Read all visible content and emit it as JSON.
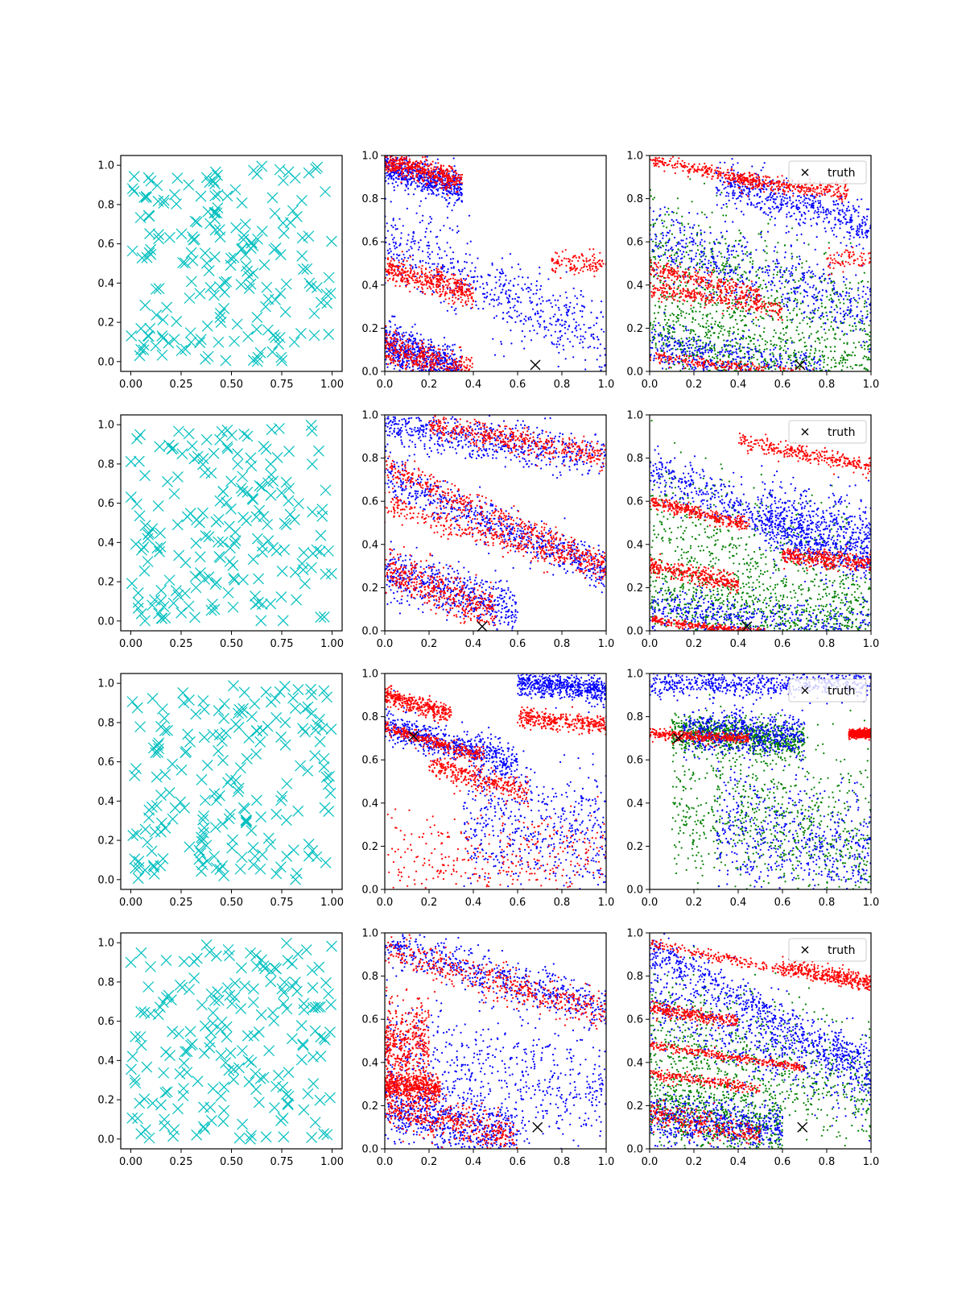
{
  "colors": {
    "samples": "#00bfbf",
    "series_blue": "#0000ff",
    "series_red": "#ff0000",
    "series_green": "#008000",
    "truth": "#000000",
    "axes": "#000000"
  },
  "legend_label": "truth",
  "chart_data": [
    {
      "row": 0,
      "col": 0,
      "type": "scatter",
      "marker": "x",
      "xlim": [
        -0.05,
        1.05
      ],
      "ylim": [
        -0.05,
        1.05
      ],
      "xticks": [
        "0.00",
        "0.25",
        "0.50",
        "0.75",
        "1.00"
      ],
      "yticks": [
        "0.0",
        "0.2",
        "0.4",
        "0.6",
        "0.8",
        "1.0"
      ],
      "series": [
        {
          "color": "samples",
          "count": 200,
          "seed": 11,
          "pattern": "uniform"
        }
      ]
    },
    {
      "row": 0,
      "col": 1,
      "type": "scatter",
      "xlim": [
        0,
        1
      ],
      "ylim": [
        0,
        1
      ],
      "xticks": [
        "0.0",
        "0.2",
        "0.4",
        "0.6",
        "0.8",
        "1.0"
      ],
      "yticks": [
        "0.0",
        "0.2",
        "0.4",
        "0.6",
        "0.8",
        "1.0"
      ],
      "truth": {
        "x": 0.68,
        "y": 0.03
      },
      "series": [
        {
          "color": "series_blue",
          "count": 1800,
          "seed": 21,
          "pattern": "bands",
          "bands": [
            [
              0.0,
              0.95,
              -0.3,
              0.35,
              0.04
            ],
            [
              0.0,
              0.13,
              -0.35,
              0.35,
              0.05
            ],
            [
              0.0,
              0.62,
              -0.5,
              1.0,
              0.1
            ]
          ]
        },
        {
          "color": "series_red",
          "count": 1800,
          "seed": 22,
          "pattern": "bands",
          "bands": [
            [
              0.0,
              0.97,
              -0.25,
              0.35,
              0.025
            ],
            [
              0.0,
              0.48,
              -0.3,
              0.4,
              0.03
            ],
            [
              0.0,
              0.12,
              -0.35,
              0.4,
              0.04
            ],
            [
              0.75,
              0.5,
              0.0,
              1.0,
              0.03
            ]
          ]
        }
      ]
    },
    {
      "row": 0,
      "col": 2,
      "type": "scatter",
      "xlim": [
        0,
        1
      ],
      "ylim": [
        0,
        1
      ],
      "xticks": [
        "0.0",
        "0.2",
        "0.4",
        "0.6",
        "0.8",
        "1.0"
      ],
      "yticks": [
        "0.0",
        "0.2",
        "0.4",
        "0.6",
        "0.8",
        "1.0"
      ],
      "truth": {
        "x": 0.68,
        "y": 0.03
      },
      "legend": true,
      "series": [
        {
          "color": "series_green",
          "count": 1500,
          "seed": 31,
          "pattern": "bands",
          "bands": [
            [
              0.0,
              0.55,
              -0.4,
              1.0,
              0.15
            ],
            [
              0.0,
              0.2,
              -0.3,
              1.0,
              0.1
            ]
          ]
        },
        {
          "color": "series_blue",
          "count": 1700,
          "seed": 32,
          "pattern": "bands",
          "bands": [
            [
              0.3,
              0.88,
              -0.3,
              0.8,
              0.05
            ],
            [
              0.0,
              0.62,
              -0.35,
              1.0,
              0.08
            ],
            [
              0.0,
              0.12,
              -0.2,
              0.8,
              0.06
            ]
          ]
        },
        {
          "color": "series_red",
          "count": 1600,
          "seed": 33,
          "pattern": "bands",
          "bands": [
            [
              0.0,
              0.98,
              -0.2,
              0.5,
              0.015
            ],
            [
              0.0,
              0.07,
              -0.12,
              0.8,
              0.015
            ],
            [
              0.0,
              0.48,
              -0.25,
              0.5,
              0.02
            ],
            [
              0.4,
              0.88,
              -0.1,
              0.5,
              0.02
            ],
            [
              0.8,
              0.52,
              0.0,
              0.7,
              0.03
            ],
            [
              0.0,
              0.38,
              -0.15,
              0.6,
              0.02
            ]
          ]
        }
      ]
    },
    {
      "row": 1,
      "col": 0,
      "type": "scatter",
      "marker": "x",
      "xlim": [
        -0.05,
        1.05
      ],
      "ylim": [
        -0.05,
        1.05
      ],
      "xticks": [
        "0.00",
        "0.25",
        "0.50",
        "0.75",
        "1.00"
      ],
      "yticks": [
        "0.0",
        "0.2",
        "0.4",
        "0.6",
        "0.8",
        "1.0"
      ],
      "series": [
        {
          "color": "samples",
          "count": 200,
          "seed": 12,
          "pattern": "uniform"
        }
      ]
    },
    {
      "row": 1,
      "col": 1,
      "type": "scatter",
      "xlim": [
        0,
        1
      ],
      "ylim": [
        0,
        1
      ],
      "xticks": [
        "0.0",
        "0.2",
        "0.4",
        "0.6",
        "0.8",
        "1.0"
      ],
      "yticks": [
        "0.0",
        "0.2",
        "0.4",
        "0.6",
        "0.8",
        "1.0"
      ],
      "truth": {
        "x": 0.44,
        "y": 0.02
      },
      "series": [
        {
          "color": "series_blue",
          "count": 1800,
          "seed": 41,
          "pattern": "bands",
          "bands": [
            [
              0.0,
              0.72,
              -0.45,
              1.0,
              0.05
            ],
            [
              0.0,
              0.27,
              -0.3,
              0.6,
              0.06
            ],
            [
              0.0,
              0.95,
              -0.15,
              1.0,
              0.05
            ]
          ]
        },
        {
          "color": "series_red",
          "count": 1700,
          "seed": 42,
          "pattern": "bands",
          "bands": [
            [
              0.0,
              0.76,
              -0.45,
              1.0,
              0.03
            ],
            [
              0.0,
              0.28,
              -0.35,
              0.5,
              0.05
            ],
            [
              0.2,
              0.95,
              -0.18,
              0.8,
              0.03
            ],
            [
              0.0,
              0.58,
              -0.3,
              1.0,
              0.03
            ]
          ]
        }
      ]
    },
    {
      "row": 1,
      "col": 2,
      "type": "scatter",
      "xlim": [
        0,
        1
      ],
      "ylim": [
        0,
        1
      ],
      "xticks": [
        "0.0",
        "0.2",
        "0.4",
        "0.6",
        "0.8",
        "1.0"
      ],
      "yticks": [
        "0.0",
        "0.2",
        "0.4",
        "0.6",
        "0.8",
        "1.0"
      ],
      "truth": {
        "x": 0.44,
        "y": 0.02
      },
      "legend": true,
      "series": [
        {
          "color": "series_green",
          "count": 1400,
          "seed": 51,
          "pattern": "bands",
          "bands": [
            [
              0.0,
              0.5,
              -0.4,
              1.0,
              0.18
            ],
            [
              0.0,
              0.15,
              -0.2,
              1.0,
              0.1
            ]
          ]
        },
        {
          "color": "series_blue",
          "count": 1700,
          "seed": 52,
          "pattern": "bands",
          "bands": [
            [
              0.0,
              0.75,
              -0.45,
              1.0,
              0.05
            ],
            [
              0.0,
              0.1,
              -0.1,
              1.0,
              0.06
            ],
            [
              0.5,
              0.55,
              -0.3,
              0.5,
              0.1
            ]
          ]
        },
        {
          "color": "series_red",
          "count": 1600,
          "seed": 53,
          "pattern": "bands",
          "bands": [
            [
              0.0,
              0.05,
              -0.12,
              0.6,
              0.01
            ],
            [
              0.0,
              0.6,
              -0.25,
              0.45,
              0.015
            ],
            [
              0.0,
              0.3,
              -0.2,
              0.4,
              0.02
            ],
            [
              0.4,
              0.88,
              -0.2,
              0.6,
              0.02
            ],
            [
              0.6,
              0.35,
              -0.1,
              0.4,
              0.02
            ]
          ]
        }
      ]
    },
    {
      "row": 2,
      "col": 0,
      "type": "scatter",
      "marker": "x",
      "xlim": [
        -0.05,
        1.05
      ],
      "ylim": [
        -0.05,
        1.05
      ],
      "xticks": [
        "0.00",
        "0.25",
        "0.50",
        "0.75",
        "1.00"
      ],
      "yticks": [
        "0.0",
        "0.2",
        "0.4",
        "0.6",
        "0.8",
        "1.0"
      ],
      "series": [
        {
          "color": "samples",
          "count": 200,
          "seed": 13,
          "pattern": "uniform"
        }
      ]
    },
    {
      "row": 2,
      "col": 1,
      "type": "scatter",
      "xlim": [
        0,
        1
      ],
      "ylim": [
        0,
        1
      ],
      "xticks": [
        "0.0",
        "0.2",
        "0.4",
        "0.6",
        "0.8",
        "1.0"
      ],
      "yticks": [
        "0.0",
        "0.2",
        "0.4",
        "0.6",
        "0.8",
        "1.0"
      ],
      "truth": {
        "x": 0.13,
        "y": 0.71
      },
      "series": [
        {
          "color": "series_blue",
          "count": 1700,
          "seed": 61,
          "pattern": "bands",
          "bands": [
            [
              0.0,
              0.76,
              -0.3,
              0.6,
              0.04
            ],
            [
              0.35,
              0.3,
              -0.1,
              0.65,
              0.15
            ],
            [
              0.6,
              0.96,
              -0.1,
              0.4,
              0.03
            ]
          ]
        },
        {
          "color": "series_red",
          "count": 1700,
          "seed": 62,
          "pattern": "bands",
          "bands": [
            [
              0.0,
              0.75,
              -0.3,
              0.45,
              0.015
            ],
            [
              0.2,
              0.58,
              -0.3,
              0.45,
              0.03
            ],
            [
              0.0,
              0.9,
              -0.3,
              0.3,
              0.02
            ],
            [
              0.6,
              0.8,
              -0.1,
              0.4,
              0.02
            ],
            [
              0.0,
              0.15,
              0.0,
              1.0,
              0.1
            ]
          ]
        }
      ]
    },
    {
      "row": 2,
      "col": 2,
      "type": "scatter",
      "xlim": [
        0,
        1
      ],
      "ylim": [
        0,
        1
      ],
      "xticks": [
        "0.0",
        "0.2",
        "0.4",
        "0.6",
        "0.8",
        "1.0"
      ],
      "yticks": [
        "0.0",
        "0.2",
        "0.4",
        "0.6",
        "0.8",
        "1.0"
      ],
      "truth": {
        "x": 0.13,
        "y": 0.7
      },
      "legend": true,
      "series": [
        {
          "color": "series_green",
          "count": 1600,
          "seed": 71,
          "pattern": "bands",
          "bands": [
            [
              0.1,
              0.74,
              -0.1,
              0.6,
              0.04
            ],
            [
              0.1,
              0.4,
              -0.2,
              0.9,
              0.18
            ]
          ]
        },
        {
          "color": "series_blue",
          "count": 1800,
          "seed": 72,
          "pattern": "bands",
          "bands": [
            [
              0.15,
              0.74,
              -0.05,
              0.55,
              0.05
            ],
            [
              0.3,
              0.3,
              -0.2,
              0.7,
              0.15
            ],
            [
              0.0,
              0.95,
              0.0,
              1.0,
              0.03
            ]
          ]
        },
        {
          "color": "series_red",
          "count": 700,
          "seed": 73,
          "pattern": "bands",
          "bands": [
            [
              0.0,
              0.72,
              -0.05,
              0.45,
              0.012
            ],
            [
              0.9,
              0.72,
              0.0,
              0.1,
              0.01
            ]
          ]
        }
      ]
    },
    {
      "row": 3,
      "col": 0,
      "type": "scatter",
      "marker": "x",
      "xlim": [
        -0.05,
        1.05
      ],
      "ylim": [
        -0.05,
        1.05
      ],
      "xticks": [
        "0.00",
        "0.25",
        "0.50",
        "0.75",
        "1.00"
      ],
      "yticks": [
        "0.0",
        "0.2",
        "0.4",
        "0.6",
        "0.8",
        "1.0"
      ],
      "series": [
        {
          "color": "samples",
          "count": 200,
          "seed": 14,
          "pattern": "uniform"
        }
      ]
    },
    {
      "row": 3,
      "col": 1,
      "type": "scatter",
      "xlim": [
        0,
        1
      ],
      "ylim": [
        0,
        1
      ],
      "xticks": [
        "0.0",
        "0.2",
        "0.4",
        "0.6",
        "0.8",
        "1.0"
      ],
      "yticks": [
        "0.0",
        "0.2",
        "0.4",
        "0.6",
        "0.8",
        "1.0"
      ],
      "truth": {
        "x": 0.69,
        "y": 0.1
      },
      "series": [
        {
          "color": "series_blue",
          "count": 1800,
          "seed": 81,
          "pattern": "bands",
          "bands": [
            [
              0.0,
              0.2,
              -0.25,
              0.6,
              0.07
            ],
            [
              0.0,
              0.95,
              -0.3,
              1.0,
              0.05
            ],
            [
              0.0,
              0.45,
              -0.2,
              1.0,
              0.15
            ]
          ]
        },
        {
          "color": "series_red",
          "count": 1800,
          "seed": 82,
          "pattern": "bands",
          "bands": [
            [
              0.0,
              0.2,
              -0.25,
              0.6,
              0.05
            ],
            [
              0.0,
              0.92,
              -0.3,
              1.0,
              0.04
            ],
            [
              0.0,
              0.5,
              -0.2,
              0.2,
              0.1
            ],
            [
              0.0,
              0.3,
              -0.1,
              0.25,
              0.03
            ]
          ]
        }
      ]
    },
    {
      "row": 3,
      "col": 2,
      "type": "scatter",
      "xlim": [
        0,
        1
      ],
      "ylim": [
        0,
        1
      ],
      "xticks": [
        "0.0",
        "0.2",
        "0.4",
        "0.6",
        "0.8",
        "1.0"
      ],
      "yticks": [
        "0.0",
        "0.2",
        "0.4",
        "0.6",
        "0.8",
        "1.0"
      ],
      "truth": {
        "x": 0.69,
        "y": 0.1
      },
      "legend": true,
      "series": [
        {
          "color": "series_green",
          "count": 1400,
          "seed": 91,
          "pattern": "bands",
          "bands": [
            [
              0.0,
              0.2,
              -0.2,
              0.6,
              0.1
            ],
            [
              0.0,
              0.55,
              -0.3,
              1.0,
              0.15
            ]
          ]
        },
        {
          "color": "series_blue",
          "count": 1800,
          "seed": 92,
          "pattern": "bands",
          "bands": [
            [
              0.0,
              0.92,
              -0.55,
              1.0,
              0.05
            ],
            [
              0.0,
              0.15,
              -0.1,
              0.6,
              0.06
            ],
            [
              0.0,
              0.7,
              -0.4,
              1.0,
              0.1
            ]
          ]
        },
        {
          "color": "series_red",
          "count": 1600,
          "seed": 93,
          "pattern": "bands",
          "bands": [
            [
              0.0,
              0.95,
              -0.2,
              1.0,
              0.012
            ],
            [
              0.0,
              0.48,
              -0.15,
              0.7,
              0.01
            ],
            [
              0.0,
              0.35,
              -0.15,
              0.5,
              0.012
            ],
            [
              0.0,
              0.16,
              -0.2,
              0.5,
              0.03
            ],
            [
              0.0,
              0.65,
              -0.15,
              0.4,
              0.015
            ],
            [
              0.6,
              0.85,
              -0.2,
              0.4,
              0.02
            ]
          ]
        }
      ]
    }
  ]
}
